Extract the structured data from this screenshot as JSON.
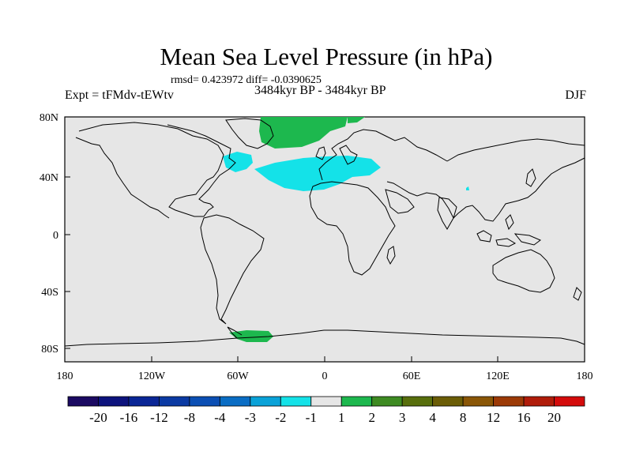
{
  "title": "Mean Sea Level Pressure (in hPa)",
  "stats": "rmsd= 0.423972 diff= -0.0390625",
  "subtitle": "3484kyr BP - 3484kyr BP",
  "experiment": "Expt = tFMdv-tEWtv",
  "season": "DJF",
  "map": {
    "background_color": "#e6e6e6",
    "lat_ticks": [
      "80N",
      "40N",
      "0",
      "40S",
      "80S"
    ],
    "lon_ticks": [
      "180",
      "120W",
      "60W",
      "0",
      "60E",
      "120E",
      "180"
    ]
  },
  "colorbar": {
    "colors": [
      "#1b0a62",
      "#0d137d",
      "#0a2696",
      "#0b3aa3",
      "#0b4fb4",
      "#0a6dc4",
      "#0aa2d8",
      "#14e2e8",
      "#e6e6e6",
      "#1db84e",
      "#3e8b22",
      "#586f0d",
      "#6b5d06",
      "#8a5606",
      "#9c3a06",
      "#b01c0a",
      "#d40b0b"
    ],
    "labels": [
      "-20",
      "-16",
      "-12",
      "-8",
      "-4",
      "-3",
      "-2",
      "-1",
      "1",
      "2",
      "3",
      "4",
      "8",
      "12",
      "16",
      "20"
    ]
  }
}
